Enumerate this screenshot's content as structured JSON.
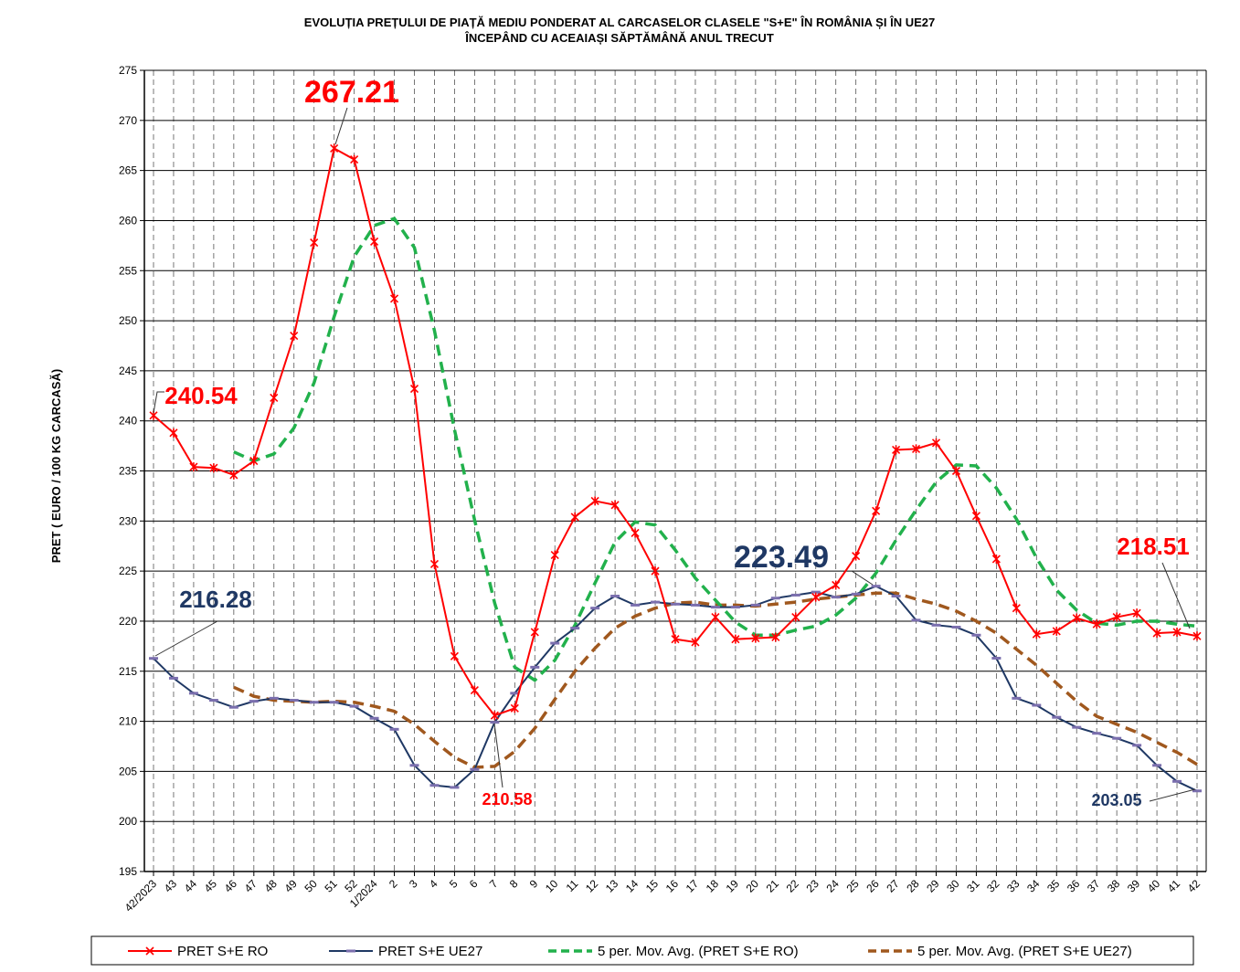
{
  "chart_data": {
    "type": "line",
    "title": "EVOLUȚIA PREȚULUI DE PIAȚĂ MEDIU PONDERAT AL CARCASELOR  CLASELE \"S+E\" ÎN ROMÂNIA  ȘI ÎN UE27",
    "subtitle": "ÎNCEPÂND  CU  ACEAIAȘI  SĂPTĂMÂNĂ  ANUL  TRECUT",
    "y_label": "PRET  ( EURO  / 100 KG CARCASĂ)",
    "categories": [
      "42/2023",
      "43",
      "44",
      "45",
      "46",
      "47",
      "48",
      "49",
      "50",
      "51",
      "52",
      "1/2024",
      "2",
      "3",
      "4",
      "5",
      "6",
      "7",
      "8",
      "9",
      "10",
      "11",
      "12",
      "13",
      "14",
      "15",
      "16",
      "17",
      "18",
      "19",
      "20",
      "21",
      "22",
      "23",
      "24",
      "25",
      "26",
      "27",
      "28",
      "29",
      "30",
      "31",
      "32",
      "33",
      "34",
      "35",
      "36",
      "37",
      "38",
      "39",
      "40",
      "41",
      "42"
    ],
    "ylim": [
      195,
      275
    ],
    "yticks": [
      195,
      200,
      205,
      210,
      215,
      220,
      225,
      230,
      235,
      240,
      245,
      250,
      255,
      260,
      265,
      270,
      275
    ],
    "grid": true,
    "series": [
      {
        "name": "PRET S+E RO",
        "color": "#ff0000",
        "marker": "star",
        "values": [
          240.54,
          238.8,
          235.4,
          235.3,
          234.6,
          236.0,
          242.3,
          248.5,
          257.8,
          267.21,
          266.1,
          257.9,
          252.2,
          243.2,
          225.7,
          216.5,
          213.1,
          210.58,
          211.3,
          218.9,
          226.6,
          230.4,
          232.0,
          231.6,
          228.8,
          225.0,
          218.2,
          217.9,
          220.4,
          218.2,
          218.3,
          218.4,
          220.4,
          222.4,
          223.6,
          226.5,
          231.0,
          237.1,
          237.2,
          237.8,
          235.0,
          230.5,
          226.2,
          221.3,
          218.7,
          219.0,
          220.3,
          219.7,
          220.4,
          220.8,
          218.8,
          218.9,
          218.51
        ]
      },
      {
        "name": "PRET S+E UE27",
        "color": "#1f3864",
        "marker": "dash",
        "values": [
          216.28,
          214.3,
          212.8,
          212.1,
          211.4,
          212.0,
          212.3,
          212.1,
          211.9,
          211.9,
          211.5,
          210.3,
          209.2,
          205.6,
          203.6,
          203.4,
          205.2,
          209.9,
          212.8,
          215.4,
          217.8,
          219.3,
          221.3,
          222.5,
          221.6,
          221.9,
          221.7,
          221.6,
          221.4,
          221.4,
          221.6,
          222.3,
          222.6,
          222.9,
          222.4,
          222.7,
          223.49,
          222.5,
          220.1,
          219.6,
          219.4,
          218.6,
          216.3,
          212.3,
          211.6,
          210.4,
          209.4,
          208.8,
          208.3,
          207.6,
          205.6,
          204.0,
          203.05
        ]
      },
      {
        "name": "5 per. Mov. Avg. (PRET S+E RO)",
        "color": "#22b14c",
        "dashed": true,
        "values": [
          null,
          null,
          null,
          null,
          236.9,
          236.0,
          236.7,
          239.3,
          243.8,
          250.4,
          256.4,
          259.5,
          260.2,
          257.3,
          249.0,
          239.1,
          230.1,
          221.8,
          215.4,
          214.1,
          216.1,
          219.6,
          223.8,
          227.9,
          229.9,
          229.6,
          227.1,
          224.3,
          222.1,
          219.9,
          218.6,
          218.6,
          219.1,
          219.5,
          220.6,
          222.3,
          224.8,
          228.1,
          231.1,
          233.9,
          235.6,
          235.5,
          233.3,
          230.2,
          226.3,
          223.1,
          221.1,
          219.8,
          219.6,
          220.0,
          220.0,
          219.7,
          219.5
        ]
      },
      {
        "name": "5 per. Mov. Avg. (PRET S+E UE27)",
        "color": "#a0581e",
        "dashed": true,
        "values": [
          null,
          null,
          null,
          null,
          213.4,
          212.5,
          212.1,
          212.0,
          211.9,
          212.0,
          211.9,
          211.5,
          211.0,
          209.7,
          208.0,
          206.4,
          205.4,
          205.5,
          207.0,
          209.3,
          212.2,
          215.0,
          217.3,
          219.3,
          220.5,
          221.3,
          221.8,
          221.9,
          221.6,
          221.6,
          221.5,
          221.7,
          221.9,
          222.2,
          222.4,
          222.6,
          222.8,
          222.8,
          222.2,
          221.7,
          221.0,
          220.0,
          218.8,
          217.2,
          215.6,
          213.8,
          212.0,
          210.5,
          209.7,
          208.9,
          207.9,
          206.9,
          205.7
        ]
      }
    ]
  }
}
